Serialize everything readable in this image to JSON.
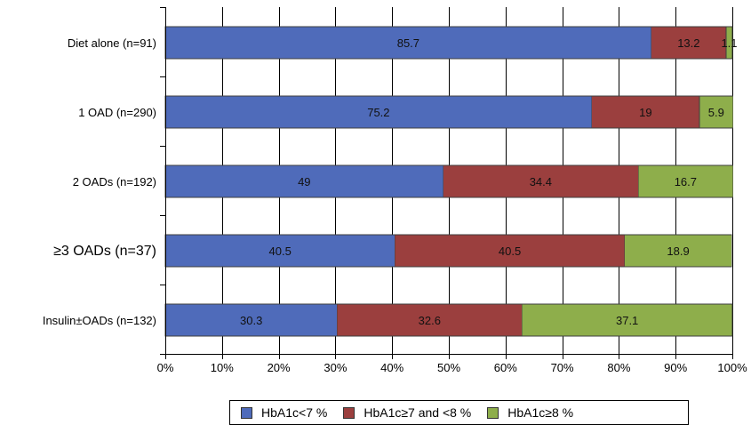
{
  "chart_data": {
    "type": "bar",
    "orientation": "horizontal",
    "stacked": true,
    "title": "",
    "xlabel": "",
    "ylabel": "",
    "categories": [
      "Diet alone (n=91)",
      "1 OAD (n=290)",
      "2 OADs (n=192)",
      "≥3 OADs (n=37)",
      "Insulin±OADs (n=132)"
    ],
    "series": [
      {
        "name": "HbA1c<7 %",
        "color": "#4f6bba",
        "values": [
          85.7,
          75.2,
          49,
          40.5,
          30.3
        ],
        "labels": [
          "85.7",
          "75.2",
          "49",
          "40.5",
          "30.3"
        ]
      },
      {
        "name": "HbA1c≥7 and <8 %",
        "color": "#9b3f3e",
        "values": [
          13.2,
          19,
          34.4,
          40.5,
          32.6
        ],
        "labels": [
          "13.2",
          "19",
          "34.4",
          "40.5",
          "32.6"
        ]
      },
      {
        "name": "HbA1c≥8 %",
        "color": "#8eae4b",
        "values": [
          1.1,
          5.9,
          16.7,
          18.9,
          37.1
        ],
        "labels": [
          "1.1",
          "5.9",
          "16.7",
          "18.9",
          "37.1"
        ]
      }
    ],
    "xlim": [
      0,
      100
    ],
    "xticks": [
      0,
      10,
      20,
      30,
      40,
      50,
      60,
      70,
      80,
      90,
      100
    ],
    "xtick_labels": [
      "0%",
      "10%",
      "20%",
      "30%",
      "40%",
      "50%",
      "60%",
      "70%",
      "80%",
      "90%",
      "100%"
    ],
    "grid": "vertical",
    "legend_position": "bottom"
  },
  "legend": {
    "items": [
      {
        "label": "HbA1c<7 %",
        "color": "#4f6bba"
      },
      {
        "label": "HbA1c≥7 and <8 %",
        "color": "#9b3f3e"
      },
      {
        "label": "HbA1c≥8 %",
        "color": "#8eae4b"
      }
    ]
  }
}
